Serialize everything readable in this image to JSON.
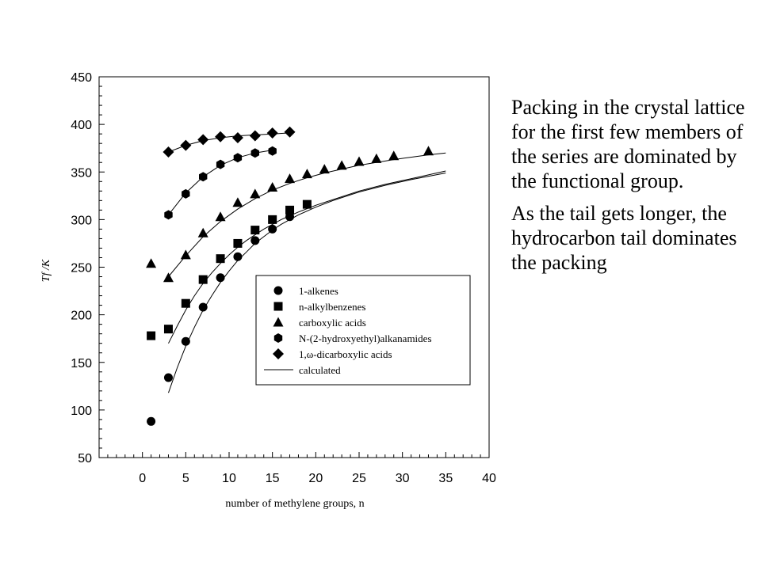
{
  "slide": {
    "paragraphs": [
      "Packing in the crystal lattice for the first few members of the series are dominated by the functional group.",
      "As the tail gets longer, the hydrocarbon tail dominates the packing"
    ]
  },
  "chart_data": {
    "type": "scatter",
    "xlabel": "number of methylene groups, n",
    "ylabel": "Tf /K",
    "xlim": [
      -5,
      40
    ],
    "ylim": [
      50,
      450
    ],
    "xticks": [
      0,
      5,
      10,
      15,
      20,
      25,
      30,
      35,
      40
    ],
    "yticks": [
      50,
      100,
      150,
      200,
      250,
      300,
      350,
      400,
      450
    ],
    "legend_position": "center-right",
    "series": [
      {
        "name": "1-alkenes",
        "marker": "circle",
        "x": [
          1,
          3,
          5,
          7,
          9,
          11,
          13,
          15,
          17
        ],
        "y": [
          88,
          134,
          172,
          208,
          239,
          261,
          278,
          290,
          303
        ]
      },
      {
        "name": "n-alkylbenzenes",
        "marker": "square",
        "x": [
          1,
          3,
          5,
          7,
          9,
          11,
          13,
          15,
          17,
          19
        ],
        "y": [
          178,
          185,
          212,
          237,
          259,
          275,
          289,
          300,
          310,
          316
        ]
      },
      {
        "name": "carboxylic acids",
        "marker": "triangle",
        "x": [
          1,
          3,
          5,
          7,
          9,
          11,
          13,
          15,
          17,
          19,
          21,
          23,
          25,
          27,
          29,
          33
        ],
        "y": [
          254,
          239,
          263,
          286,
          303,
          318,
          327,
          334,
          343,
          348,
          353,
          357,
          361,
          364,
          367,
          372
        ]
      },
      {
        "name": "N-(2-hydroxyethyl)alkanamides",
        "marker": "hexagon",
        "x": [
          3,
          5,
          7,
          9,
          11,
          13,
          15
        ],
        "y": [
          305,
          327,
          345,
          358,
          365,
          370,
          372
        ]
      },
      {
        "name": "1,ω-dicarboxylic acids",
        "marker": "diamond",
        "x": [
          3,
          5,
          7,
          9,
          11,
          13,
          15,
          17
        ],
        "y": [
          371,
          378,
          384,
          387,
          386,
          388,
          391,
          392
        ]
      },
      {
        "name": "calculated",
        "marker": "line",
        "curves": [
          {
            "x": [
              3,
              4,
              5,
              6,
              7,
              8,
              9,
              10,
              11,
              12,
              13,
              14,
              15,
              16,
              17,
              18,
              20,
              22,
              25,
              28,
              31,
              35
            ],
            "y": [
              118,
              144,
              167,
              187,
              205,
              220,
              234,
              246,
              257,
              266,
              275,
              282,
              289,
              295,
              300,
              305,
              313,
              320,
              329,
              336,
              342,
              349
            ]
          },
          {
            "x": [
              3,
              4,
              5,
              6,
              7,
              8,
              9,
              10,
              11,
              12,
              13,
              14,
              15,
              16,
              17,
              18,
              20,
              22,
              25,
              28,
              31,
              35
            ],
            "y": [
              170,
              188,
              205,
              220,
              233,
              244,
              254,
              263,
              271,
              278,
              284,
              290,
              295,
              300,
              304,
              308,
              315,
              321,
              330,
              337,
              343,
              351
            ]
          },
          {
            "x": [
              3,
              5,
              7,
              9,
              11,
              13,
              15,
              17,
              19,
              21,
              25,
              29,
              33,
              35
            ],
            "y": [
              240,
              262,
              282,
              298,
              311,
              322,
              331,
              338,
              344,
              349,
              357,
              363,
              368,
              370
            ]
          },
          {
            "x": [
              3,
              5,
              7,
              9,
              11,
              13,
              15
            ],
            "y": [
              305,
              328,
              345,
              357,
              365,
              370,
              373
            ]
          },
          {
            "x": [
              3,
              5,
              7,
              9,
              11,
              13,
              15,
              17
            ],
            "y": [
              371,
              378,
              383,
              386,
              388,
              389,
              390,
              391
            ]
          }
        ]
      }
    ]
  }
}
